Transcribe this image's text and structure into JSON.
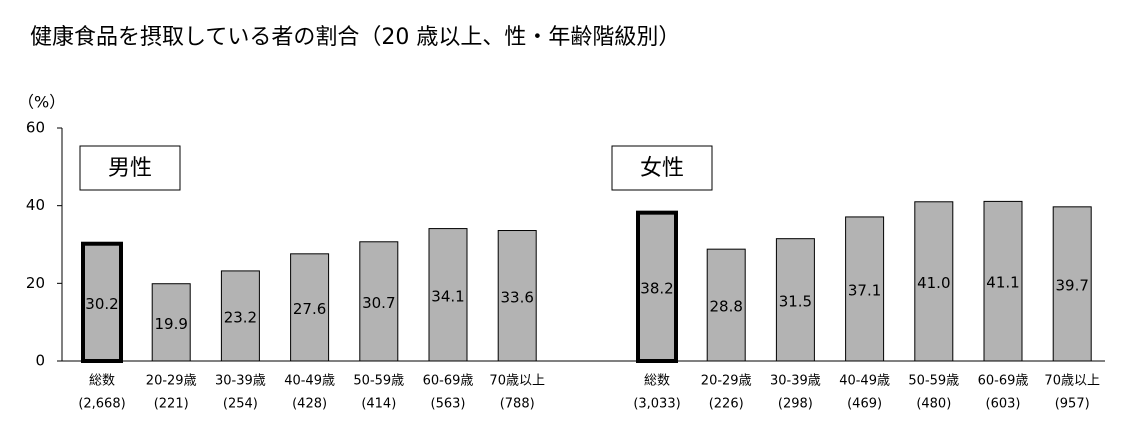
{
  "chart_data": {
    "type": "bar",
    "title": "健康食品を摂取している者の割合（20 歳以上、性・年齢階級別）",
    "y_unit": "（%）",
    "categories": [
      "総数",
      "20-29歳",
      "30-39歳",
      "40-49歳",
      "50-59歳",
      "60-69歳",
      "70歳以上"
    ],
    "ylim": [
      0,
      60
    ],
    "yticks": [
      0,
      20,
      40,
      60
    ],
    "series": [
      {
        "name": "男性",
        "color": "#b3b3b3",
        "sample_sizes": [
          "(2,668)",
          "(221)",
          "(254)",
          "(428)",
          "(414)",
          "(563)",
          "(788)"
        ],
        "values": [
          30.2,
          19.9,
          23.2,
          27.6,
          30.7,
          34.1,
          33.6
        ],
        "value_labels": [
          "30.2",
          "19.9",
          "23.2",
          "27.6",
          "30.7",
          "34.1",
          "33.6"
        ]
      },
      {
        "name": "女性",
        "color": "#b3b3b3",
        "sample_sizes": [
          "(3,033)",
          "(226)",
          "(298)",
          "(469)",
          "(480)",
          "(603)",
          "(957)"
        ],
        "values": [
          38.2,
          28.8,
          31.5,
          37.1,
          41.0,
          41.1,
          39.7
        ],
        "value_labels": [
          "38.2",
          "28.8",
          "31.5",
          "37.1",
          "41.0",
          "41.1",
          "39.7"
        ]
      }
    ]
  }
}
